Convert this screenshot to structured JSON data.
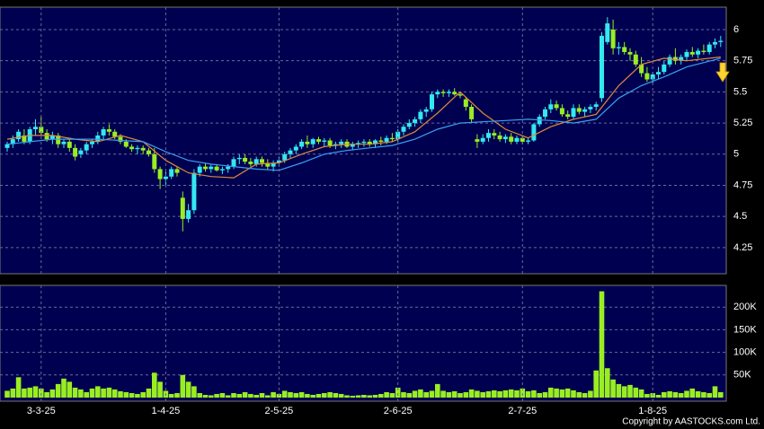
{
  "chart_data": [
    {
      "type": "candlestick",
      "ylim": [
        4.04,
        6.18
      ],
      "yticks": [
        4.25,
        4.5,
        4.75,
        5,
        5.25,
        5.5,
        5.75,
        6
      ],
      "grid": true,
      "up_color": "#33e8f0",
      "down_color": "#99ee22",
      "ohlc": [
        [
          5.05,
          5.1,
          5.02,
          5.08
        ],
        [
          5.08,
          5.15,
          5.05,
          5.12
        ],
        [
          5.12,
          5.2,
          5.1,
          5.18
        ],
        [
          5.15,
          5.2,
          5.08,
          5.1
        ],
        [
          5.1,
          5.22,
          5.08,
          5.2
        ],
        [
          5.2,
          5.28,
          5.15,
          5.22
        ],
        [
          5.22,
          5.3,
          5.15,
          5.17
        ],
        [
          5.17,
          5.2,
          5.1,
          5.12
        ],
        [
          5.12,
          5.18,
          5.08,
          5.15
        ],
        [
          5.15,
          5.17,
          5.05,
          5.08
        ],
        [
          5.08,
          5.12,
          5.05,
          5.1
        ],
        [
          5.1,
          5.12,
          5.02,
          5.05
        ],
        [
          5.05,
          5.08,
          4.95,
          4.98
        ],
        [
          5.0,
          5.05,
          4.97,
          5.03
        ],
        [
          5.03,
          5.1,
          5.0,
          5.08
        ],
        [
          5.08,
          5.12,
          5.05,
          5.1
        ],
        [
          5.1,
          5.18,
          5.08,
          5.15
        ],
        [
          5.15,
          5.22,
          5.12,
          5.2
        ],
        [
          5.2,
          5.24,
          5.15,
          5.18
        ],
        [
          5.18,
          5.2,
          5.12,
          5.14
        ],
        [
          5.14,
          5.16,
          5.08,
          5.1
        ],
        [
          5.1,
          5.12,
          5.05,
          5.06
        ],
        [
          5.06,
          5.08,
          5.02,
          5.04
        ],
        [
          5.04,
          5.07,
          5.0,
          5.05
        ],
        [
          5.05,
          5.07,
          5.0,
          5.03
        ],
        [
          5.03,
          5.05,
          4.98,
          5.0
        ],
        [
          5.0,
          5.05,
          4.85,
          4.88
        ],
        [
          4.88,
          4.9,
          4.72,
          4.8
        ],
        [
          4.8,
          4.86,
          4.75,
          4.82
        ],
        [
          4.82,
          4.9,
          4.8,
          4.88
        ],
        [
          4.88,
          4.9,
          4.82,
          4.85
        ],
        [
          4.65,
          4.7,
          4.38,
          4.48
        ],
        [
          4.48,
          4.6,
          4.45,
          4.55
        ],
        [
          4.55,
          4.88,
          4.52,
          4.85
        ],
        [
          4.85,
          4.92,
          4.82,
          4.9
        ],
        [
          4.9,
          4.93,
          4.86,
          4.88
        ],
        [
          4.88,
          4.92,
          4.85,
          4.9
        ],
        [
          4.9,
          4.92,
          4.86,
          4.87
        ],
        [
          4.87,
          4.9,
          4.84,
          4.88
        ],
        [
          4.88,
          4.92,
          4.85,
          4.9
        ],
        [
          4.9,
          4.98,
          4.88,
          4.96
        ],
        [
          4.96,
          5.0,
          4.92,
          4.97
        ],
        [
          4.97,
          5.0,
          4.92,
          4.94
        ],
        [
          4.94,
          4.97,
          4.9,
          4.92
        ],
        [
          4.92,
          4.98,
          4.9,
          4.96
        ],
        [
          4.96,
          4.98,
          4.9,
          4.93
        ],
        [
          4.93,
          4.96,
          4.88,
          4.9
        ],
        [
          4.9,
          4.95,
          4.86,
          4.93
        ],
        [
          4.93,
          4.98,
          4.9,
          4.95
        ],
        [
          4.95,
          5.02,
          4.93,
          5.0
        ],
        [
          5.0,
          5.05,
          4.97,
          5.03
        ],
        [
          5.03,
          5.08,
          5.0,
          5.06
        ],
        [
          5.06,
          5.12,
          5.04,
          5.1
        ],
        [
          5.1,
          5.15,
          5.05,
          5.08
        ],
        [
          5.08,
          5.13,
          5.05,
          5.12
        ],
        [
          5.12,
          5.14,
          5.08,
          5.1
        ],
        [
          5.1,
          5.13,
          5.06,
          5.11
        ],
        [
          5.11,
          5.13,
          5.05,
          5.07
        ],
        [
          5.07,
          5.1,
          5.04,
          5.08
        ],
        [
          5.08,
          5.12,
          5.05,
          5.1
        ],
        [
          5.1,
          5.12,
          5.05,
          5.06
        ],
        [
          5.06,
          5.1,
          5.03,
          5.08
        ],
        [
          5.08,
          5.11,
          5.05,
          5.09
        ],
        [
          5.09,
          5.12,
          5.06,
          5.1
        ],
        [
          5.1,
          5.12,
          5.06,
          5.08
        ],
        [
          5.08,
          5.12,
          5.05,
          5.11
        ],
        [
          5.11,
          5.14,
          5.07,
          5.1
        ],
        [
          5.1,
          5.15,
          5.08,
          5.13
        ],
        [
          5.13,
          5.17,
          5.1,
          5.12
        ],
        [
          5.12,
          5.2,
          5.1,
          5.18
        ],
        [
          5.18,
          5.24,
          5.15,
          5.22
        ],
        [
          5.22,
          5.28,
          5.2,
          5.25
        ],
        [
          5.25,
          5.3,
          5.22,
          5.28
        ],
        [
          5.28,
          5.36,
          5.25,
          5.34
        ],
        [
          5.34,
          5.38,
          5.3,
          5.36
        ],
        [
          5.36,
          5.5,
          5.34,
          5.48
        ],
        [
          5.48,
          5.52,
          5.45,
          5.5
        ],
        [
          5.5,
          5.52,
          5.46,
          5.49
        ],
        [
          5.49,
          5.52,
          5.46,
          5.5
        ],
        [
          5.5,
          5.53,
          5.47,
          5.48
        ],
        [
          5.48,
          5.5,
          5.45,
          5.47
        ],
        [
          5.44,
          5.46,
          5.35,
          5.38
        ],
        [
          5.38,
          5.4,
          5.25,
          5.28
        ],
        [
          5.12,
          5.16,
          5.05,
          5.1
        ],
        [
          5.1,
          5.16,
          5.08,
          5.13
        ],
        [
          5.13,
          5.2,
          5.1,
          5.17
        ],
        [
          5.17,
          5.2,
          5.12,
          5.15
        ],
        [
          5.15,
          5.18,
          5.1,
          5.12
        ],
        [
          5.12,
          5.16,
          5.09,
          5.14
        ],
        [
          5.14,
          5.17,
          5.08,
          5.1
        ],
        [
          5.1,
          5.15,
          5.08,
          5.13
        ],
        [
          5.13,
          5.15,
          5.08,
          5.1
        ],
        [
          5.1,
          5.13,
          5.08,
          5.11
        ],
        [
          5.11,
          5.25,
          5.1,
          5.24
        ],
        [
          5.24,
          5.32,
          5.22,
          5.3
        ],
        [
          5.3,
          5.38,
          5.28,
          5.36
        ],
        [
          5.36,
          5.44,
          5.33,
          5.4
        ],
        [
          5.4,
          5.43,
          5.35,
          5.37
        ],
        [
          5.37,
          5.4,
          5.3,
          5.32
        ],
        [
          5.32,
          5.35,
          5.28,
          5.3
        ],
        [
          5.3,
          5.4,
          5.28,
          5.37
        ],
        [
          5.37,
          5.4,
          5.32,
          5.34
        ],
        [
          5.34,
          5.38,
          5.3,
          5.36
        ],
        [
          5.36,
          5.4,
          5.33,
          5.38
        ],
        [
          5.38,
          5.42,
          5.35,
          5.4
        ],
        [
          5.45,
          5.98,
          5.42,
          5.95
        ],
        [
          5.9,
          6.1,
          5.88,
          6.05
        ],
        [
          6.0,
          6.08,
          5.8,
          5.85
        ],
        [
          5.85,
          5.9,
          5.8,
          5.86
        ],
        [
          5.86,
          5.9,
          5.8,
          5.82
        ],
        [
          5.82,
          5.85,
          5.75,
          5.8
        ],
        [
          5.8,
          5.83,
          5.7,
          5.72
        ],
        [
          5.72,
          5.78,
          5.62,
          5.65
        ],
        [
          5.65,
          5.7,
          5.58,
          5.6
        ],
        [
          5.6,
          5.66,
          5.57,
          5.64
        ],
        [
          5.64,
          5.7,
          5.6,
          5.66
        ],
        [
          5.66,
          5.75,
          5.64,
          5.72
        ],
        [
          5.72,
          5.8,
          5.7,
          5.78
        ],
        [
          5.78,
          5.85,
          5.72,
          5.75
        ],
        [
          5.75,
          5.8,
          5.72,
          5.78
        ],
        [
          5.78,
          5.84,
          5.75,
          5.82
        ],
        [
          5.82,
          5.86,
          5.78,
          5.8
        ],
        [
          5.8,
          5.85,
          5.77,
          5.83
        ],
        [
          5.83,
          5.88,
          5.8,
          5.82
        ],
        [
          5.82,
          5.9,
          5.8,
          5.88
        ],
        [
          5.88,
          5.93,
          5.85,
          5.9
        ],
        [
          5.9,
          5.95,
          5.86,
          5.91
        ]
      ],
      "lines": [
        {
          "color": "#e08a3a",
          "x": [
            0,
            4,
            8,
            12,
            16,
            20,
            24,
            28,
            32,
            36,
            40,
            44,
            48,
            52,
            56,
            60,
            64,
            68,
            72,
            76,
            80,
            84,
            88,
            92,
            96,
            100,
            104,
            108,
            112,
            116,
            120,
            126
          ],
          "values": [
            5.12,
            5.15,
            5.15,
            5.12,
            5.1,
            5.15,
            5.1,
            4.95,
            4.85,
            4.82,
            4.81,
            4.92,
            4.93,
            5.0,
            5.06,
            5.08,
            5.08,
            5.1,
            5.18,
            5.33,
            5.5,
            5.33,
            5.2,
            5.13,
            5.22,
            5.28,
            5.32,
            5.55,
            5.72,
            5.77,
            5.75,
            5.78
          ]
        },
        {
          "color": "#3aa0f0",
          "x": [
            0,
            8,
            16,
            24,
            28,
            32,
            36,
            40,
            44,
            48,
            52,
            56,
            60,
            64,
            68,
            72,
            76,
            80,
            84,
            88,
            92,
            96,
            100,
            104,
            108,
            112,
            116,
            120,
            126
          ],
          "values": [
            5.08,
            5.12,
            5.12,
            5.1,
            5.02,
            4.95,
            4.92,
            4.9,
            4.88,
            4.87,
            4.93,
            5.0,
            5.03,
            5.05,
            5.07,
            5.12,
            5.2,
            5.25,
            5.26,
            5.27,
            5.28,
            5.27,
            5.25,
            5.28,
            5.45,
            5.55,
            5.62,
            5.7,
            5.77
          ]
        }
      ]
    },
    {
      "type": "bar",
      "ylim": [
        0,
        248000
      ],
      "yticks": [
        {
          "value": 50000,
          "label": "50K"
        },
        {
          "value": 100000,
          "label": "100K"
        },
        {
          "value": 150000,
          "label": "150K"
        },
        {
          "value": 200000,
          "label": "200K"
        }
      ],
      "grid": true,
      "color": "#99ee22",
      "categories": [
        null,
        null,
        null,
        null,
        null,
        null,
        "3-3-25",
        null,
        null,
        null,
        null,
        null,
        null,
        null,
        null,
        null,
        null,
        null,
        null,
        null,
        null,
        null,
        null,
        null,
        null,
        null,
        null,
        null,
        "1-4-25",
        null,
        null,
        null,
        null,
        null,
        null,
        null,
        null,
        null,
        null,
        null,
        null,
        null,
        null,
        null,
        null,
        null,
        null,
        null,
        "2-5-25",
        null,
        null,
        null,
        null,
        null,
        null,
        null,
        null,
        null,
        null,
        null,
        null,
        null,
        null,
        null,
        null,
        null,
        null,
        null,
        null,
        "2-6-25",
        null,
        null,
        null,
        null,
        null,
        null,
        null,
        null,
        null,
        null,
        null,
        null,
        null,
        null,
        null,
        null,
        null,
        null,
        null,
        null,
        null,
        "2-7-25",
        null,
        null,
        null,
        null,
        null,
        null,
        null,
        null,
        null,
        null,
        null,
        null,
        null,
        null,
        null,
        null,
        null,
        null,
        null,
        null,
        null,
        null,
        "1-8-25",
        null,
        null,
        null,
        null,
        null,
        null,
        null,
        null,
        null,
        null,
        null,
        null
      ],
      "values": [
        15000,
        20000,
        45000,
        20000,
        22000,
        25000,
        20000,
        12000,
        18000,
        30000,
        42000,
        35000,
        22000,
        18000,
        12000,
        20000,
        25000,
        20000,
        22000,
        18000,
        14000,
        12000,
        10000,
        8000,
        12000,
        20000,
        55000,
        35000,
        15000,
        8000,
        10000,
        50000,
        35000,
        25000,
        10000,
        6000,
        5000,
        8000,
        10000,
        5000,
        10000,
        8000,
        12000,
        8000,
        6000,
        10000,
        5000,
        12000,
        8000,
        15000,
        12000,
        10000,
        12000,
        8000,
        6000,
        8000,
        10000,
        12000,
        10000,
        8000,
        5000,
        4000,
        5000,
        6000,
        5000,
        6000,
        8000,
        12000,
        10000,
        22000,
        12000,
        10000,
        15000,
        18000,
        12000,
        15000,
        30000,
        15000,
        12000,
        14000,
        10000,
        12000,
        18000,
        15000,
        12000,
        14000,
        16000,
        14000,
        16000,
        18000,
        16000,
        20000,
        14000,
        16000,
        10000,
        12000,
        22000,
        20000,
        18000,
        20000,
        16000,
        12000,
        10000,
        15000,
        60000,
        235000,
        65000,
        40000,
        30000,
        25000,
        28000,
        22000,
        18000,
        8000,
        10000,
        6000,
        12000,
        14000,
        12000,
        10000,
        15000,
        20000,
        14000,
        12000,
        10000,
        25000,
        12000
      ]
    }
  ],
  "copyright": "Copyright by AASTOCKS.com Ltd."
}
